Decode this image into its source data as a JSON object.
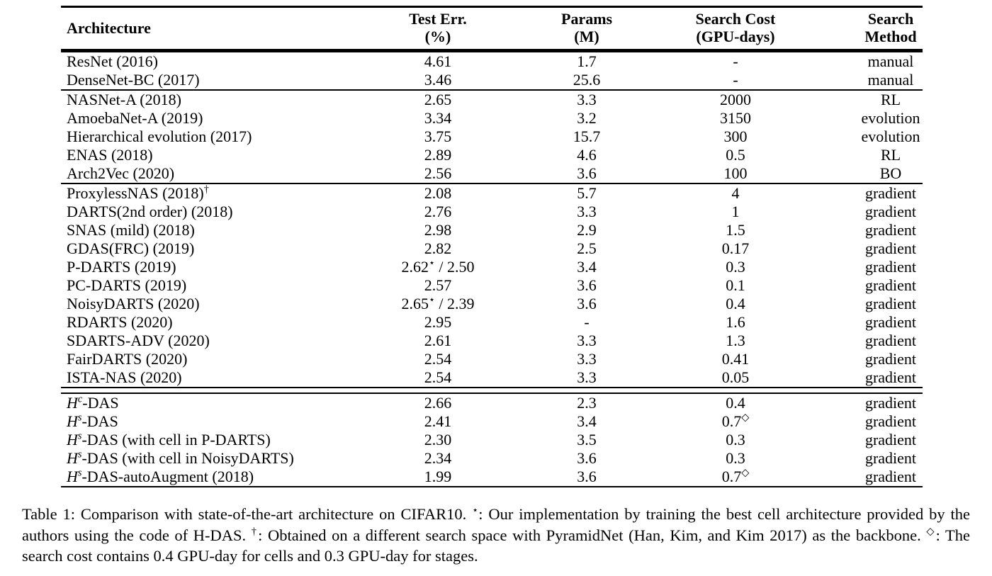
{
  "table": {
    "headers": [
      {
        "line1": "Architecture",
        "line2": ""
      },
      {
        "line1": "Test Err.",
        "line2": "(%)"
      },
      {
        "line1": "Params",
        "line2": "(M)"
      },
      {
        "line1": "Search Cost",
        "line2": "(GPU-days)"
      },
      {
        "line1": "Search",
        "line2": "Method"
      }
    ],
    "sections": [
      {
        "name": "manual",
        "rows": [
          {
            "cells": [
              [
                {
                  "t": "ResNet (2016)"
                }
              ],
              [
                {
                  "t": "4.61"
                }
              ],
              [
                {
                  "t": "1.7"
                }
              ],
              [
                {
                  "t": "-"
                }
              ],
              [
                {
                  "t": "manual"
                }
              ]
            ]
          },
          {
            "cells": [
              [
                {
                  "t": "DenseNet-BC (2017)"
                }
              ],
              [
                {
                  "t": "3.46"
                }
              ],
              [
                {
                  "t": "25.6"
                }
              ],
              [
                {
                  "t": "-"
                }
              ],
              [
                {
                  "t": "manual"
                }
              ]
            ]
          }
        ]
      },
      {
        "name": "non-gradient-nas",
        "rows": [
          {
            "cells": [
              [
                {
                  "t": "NASNet-A (2018)"
                }
              ],
              [
                {
                  "t": "2.65"
                }
              ],
              [
                {
                  "t": "3.3"
                }
              ],
              [
                {
                  "t": "2000"
                }
              ],
              [
                {
                  "t": "RL"
                }
              ]
            ]
          },
          {
            "cells": [
              [
                {
                  "t": "AmoebaNet-A (2019)"
                }
              ],
              [
                {
                  "t": "3.34"
                }
              ],
              [
                {
                  "t": "3.2"
                }
              ],
              [
                {
                  "t": "3150"
                }
              ],
              [
                {
                  "t": "evolution"
                }
              ]
            ]
          },
          {
            "cells": [
              [
                {
                  "t": "Hierarchical evolution (2017)"
                }
              ],
              [
                {
                  "t": "3.75"
                }
              ],
              [
                {
                  "t": "15.7"
                }
              ],
              [
                {
                  "t": "300"
                }
              ],
              [
                {
                  "t": "evolution"
                }
              ]
            ]
          },
          {
            "cells": [
              [
                {
                  "t": "ENAS (2018)"
                }
              ],
              [
                {
                  "t": "2.89"
                }
              ],
              [
                {
                  "t": "4.6"
                }
              ],
              [
                {
                  "t": "0.5"
                }
              ],
              [
                {
                  "t": "RL"
                }
              ]
            ]
          },
          {
            "cells": [
              [
                {
                  "t": "Arch2Vec (2020)"
                }
              ],
              [
                {
                  "t": "2.56"
                }
              ],
              [
                {
                  "t": "3.6"
                }
              ],
              [
                {
                  "t": "100"
                }
              ],
              [
                {
                  "t": "BO"
                }
              ]
            ]
          }
        ]
      },
      {
        "name": "gradient-nas",
        "rows": [
          {
            "cells": [
              [
                {
                  "t": "ProxylessNAS (2018)"
                },
                {
                  "t": "†",
                  "s": "sup"
                }
              ],
              [
                {
                  "t": "2.08"
                }
              ],
              [
                {
                  "t": "5.7"
                }
              ],
              [
                {
                  "t": "4"
                }
              ],
              [
                {
                  "t": "gradient"
                }
              ]
            ]
          },
          {
            "cells": [
              [
                {
                  "t": "DARTS(2nd order) (2018)"
                }
              ],
              [
                {
                  "t": "2.76"
                }
              ],
              [
                {
                  "t": "3.3"
                }
              ],
              [
                {
                  "t": "1"
                }
              ],
              [
                {
                  "t": "gradient"
                }
              ]
            ]
          },
          {
            "cells": [
              [
                {
                  "t": "SNAS (mild) (2018)"
                }
              ],
              [
                {
                  "t": "2.98"
                }
              ],
              [
                {
                  "t": "2.9"
                }
              ],
              [
                {
                  "t": "1.5"
                }
              ],
              [
                {
                  "t": "gradient"
                }
              ]
            ]
          },
          {
            "cells": [
              [
                {
                  "t": "GDAS(FRC) (2019)"
                }
              ],
              [
                {
                  "t": "2.82"
                }
              ],
              [
                {
                  "t": "2.5"
                }
              ],
              [
                {
                  "t": "0.17"
                }
              ],
              [
                {
                  "t": "gradient"
                }
              ]
            ]
          },
          {
            "cells": [
              [
                {
                  "t": "P-DARTS (2019)"
                }
              ],
              [
                {
                  "t": "2.62"
                },
                {
                  "t": "⋆",
                  "s": "sup"
                },
                {
                  "t": " / 2.50"
                }
              ],
              [
                {
                  "t": "3.4"
                }
              ],
              [
                {
                  "t": "0.3"
                }
              ],
              [
                {
                  "t": "gradient"
                }
              ]
            ]
          },
          {
            "cells": [
              [
                {
                  "t": "PC-DARTS (2019)"
                }
              ],
              [
                {
                  "t": "2.57"
                }
              ],
              [
                {
                  "t": "3.6"
                }
              ],
              [
                {
                  "t": "0.1"
                }
              ],
              [
                {
                  "t": "gradient"
                }
              ]
            ]
          },
          {
            "cells": [
              [
                {
                  "t": "NoisyDARTS (2020)"
                }
              ],
              [
                {
                  "t": "2.65"
                },
                {
                  "t": "⋆",
                  "s": "sup"
                },
                {
                  "t": " / 2.39"
                }
              ],
              [
                {
                  "t": "3.6"
                }
              ],
              [
                {
                  "t": "0.4"
                }
              ],
              [
                {
                  "t": "gradient"
                }
              ]
            ]
          },
          {
            "cells": [
              [
                {
                  "t": "RDARTS  (2020)"
                }
              ],
              [
                {
                  "t": "2.95"
                }
              ],
              [
                {
                  "t": "-"
                }
              ],
              [
                {
                  "t": "1.6"
                }
              ],
              [
                {
                  "t": "gradient"
                }
              ]
            ]
          },
          {
            "cells": [
              [
                {
                  "t": "SDARTS-ADV (2020)"
                }
              ],
              [
                {
                  "t": "2.61"
                }
              ],
              [
                {
                  "t": "3.3"
                }
              ],
              [
                {
                  "t": "1.3"
                }
              ],
              [
                {
                  "t": "gradient"
                }
              ]
            ]
          },
          {
            "cells": [
              [
                {
                  "t": "FairDARTS (2020)"
                }
              ],
              [
                {
                  "t": "2.54"
                }
              ],
              [
                {
                  "t": "3.3"
                }
              ],
              [
                {
                  "t": "0.41"
                }
              ],
              [
                {
                  "t": "gradient"
                }
              ]
            ]
          },
          {
            "cells": [
              [
                {
                  "t": "ISTA-NAS (2020)"
                }
              ],
              [
                {
                  "t": "2.54"
                }
              ],
              [
                {
                  "t": "3.3"
                }
              ],
              [
                {
                  "t": "0.05"
                }
              ],
              [
                {
                  "t": "gradient"
                }
              ]
            ]
          }
        ]
      },
      {
        "name": "h-das-ours",
        "double_rule_before": true,
        "rows": [
          {
            "cells": [
              [
                {
                  "t": "H",
                  "s": "i"
                },
                {
                  "t": "c",
                  "s": "i-sup"
                },
                {
                  "t": "-DAS"
                }
              ],
              [
                {
                  "t": "2.66"
                }
              ],
              [
                {
                  "t": "2.3"
                }
              ],
              [
                {
                  "t": "0.4"
                }
              ],
              [
                {
                  "t": "gradient"
                }
              ]
            ]
          },
          {
            "cells": [
              [
                {
                  "t": "H",
                  "s": "i"
                },
                {
                  "t": "s",
                  "s": "i-sup"
                },
                {
                  "t": "-DAS"
                }
              ],
              [
                {
                  "t": "2.41"
                }
              ],
              [
                {
                  "t": "3.4"
                }
              ],
              [
                {
                  "t": "0.7"
                },
                {
                  "t": "◇",
                  "s": "sup"
                }
              ],
              [
                {
                  "t": "gradient"
                }
              ]
            ]
          },
          {
            "cells": [
              [
                {
                  "t": "H",
                  "s": "i"
                },
                {
                  "t": "s",
                  "s": "i-sup"
                },
                {
                  "t": "-DAS (with cell in P-DARTS)"
                }
              ],
              [
                {
                  "t": "2.30"
                }
              ],
              [
                {
                  "t": "3.5"
                }
              ],
              [
                {
                  "t": "0.3"
                }
              ],
              [
                {
                  "t": "gradient"
                }
              ]
            ]
          },
          {
            "cells": [
              [
                {
                  "t": "H",
                  "s": "i"
                },
                {
                  "t": "s",
                  "s": "i-sup"
                },
                {
                  "t": "-DAS (with cell in NoisyDARTS)"
                }
              ],
              [
                {
                  "t": "2.34"
                }
              ],
              [
                {
                  "t": "3.6"
                }
              ],
              [
                {
                  "t": "0.3"
                }
              ],
              [
                {
                  "t": "gradient"
                }
              ]
            ]
          },
          {
            "cells": [
              [
                {
                  "t": "H",
                  "s": "i"
                },
                {
                  "t": "s",
                  "s": "i-sup"
                },
                {
                  "t": "-DAS-autoAugment (2018)"
                }
              ],
              [
                {
                  "t": "1.99"
                }
              ],
              [
                {
                  "t": "3.6"
                }
              ],
              [
                {
                  "t": "0.7"
                },
                {
                  "t": "◇",
                  "s": "sup"
                }
              ],
              [
                {
                  "t": "gradient"
                }
              ]
            ]
          }
        ]
      }
    ]
  },
  "caption": {
    "segments": [
      {
        "t": "Table 1: Comparison with state-of-the-art architecture on CIFAR10.  "
      },
      {
        "t": "⋆",
        "s": "sup"
      },
      {
        "t": ": Our implementation by training the best cell architecture provided by the authors using the code of H-DAS.  "
      },
      {
        "t": "†",
        "s": "sup"
      },
      {
        "t": ": Obtained on a different search space with PyramidNet (Han, Kim, and Kim 2017) as the backbone.  "
      },
      {
        "t": "◇",
        "s": "sup"
      },
      {
        "t": ": The search cost contains 0.4 GPU-day for cells and 0.3 GPU-day for stages."
      }
    ]
  }
}
